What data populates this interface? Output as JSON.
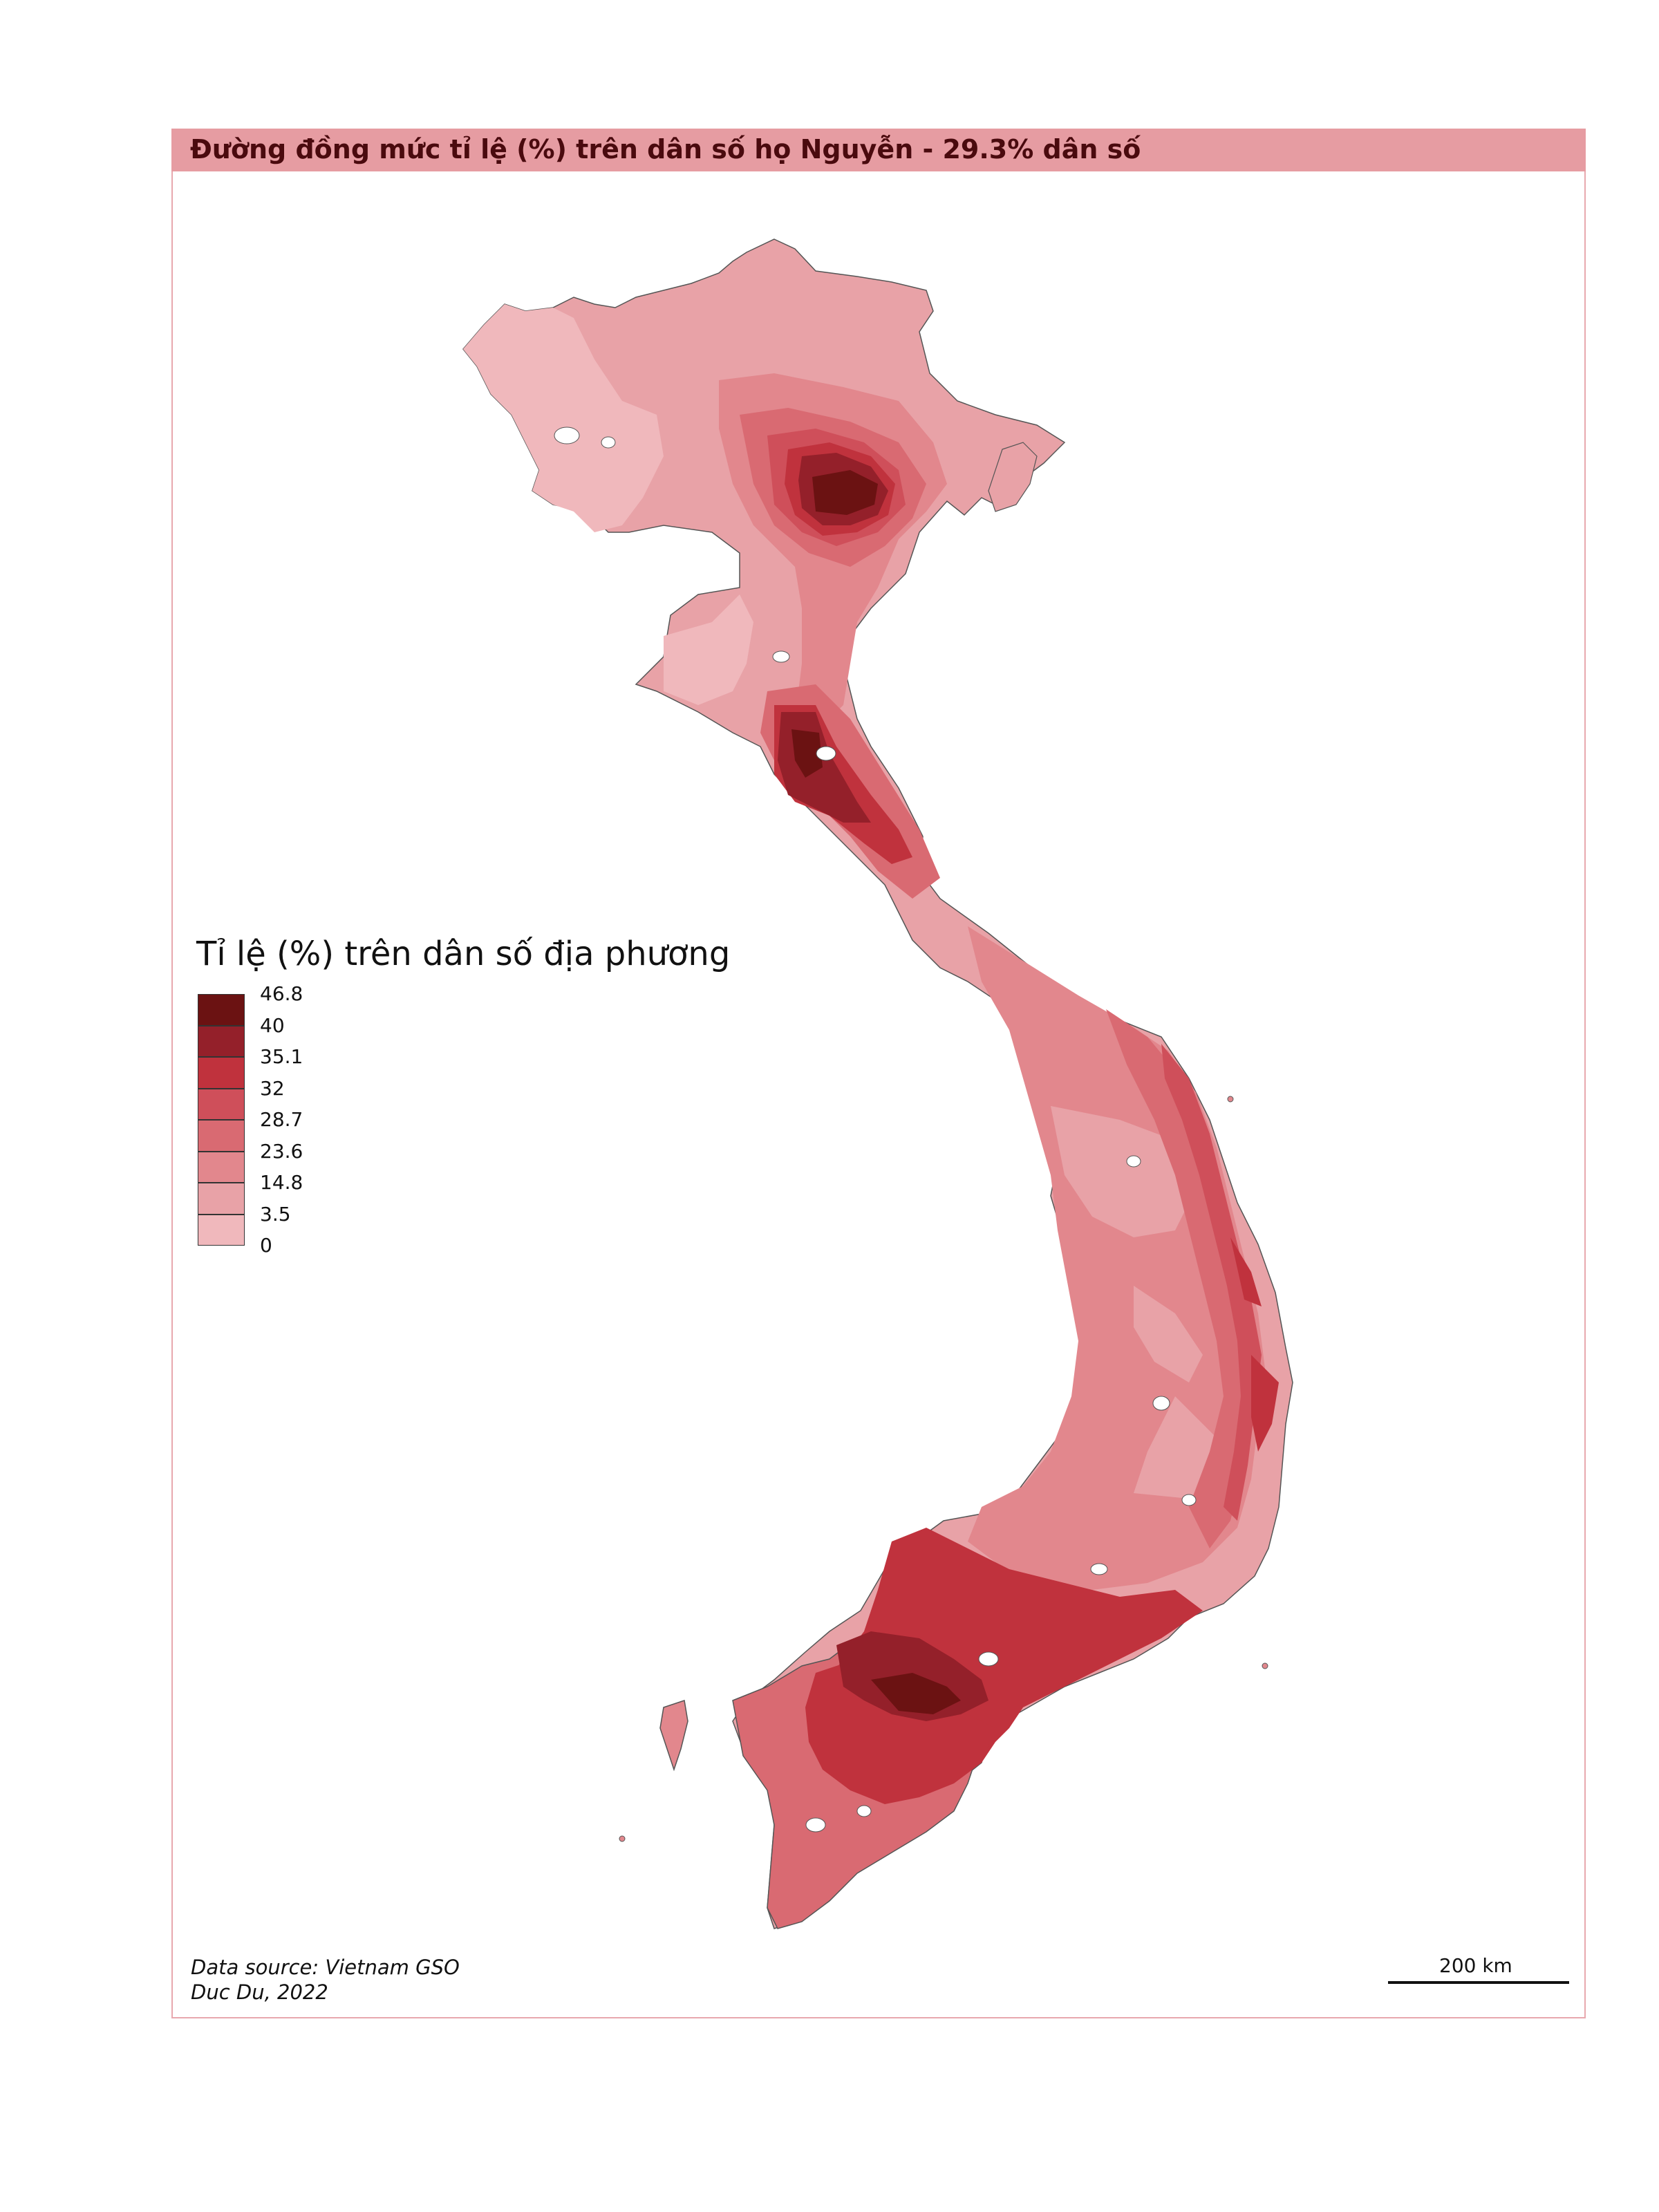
{
  "title": "Đường đồng mức tỉ lệ (%) trên dân số họ Nguyễn - 29.3% dân số",
  "legend": {
    "title": "Tỉ lệ (%) trên dân số địa phương",
    "breaks": [
      "46.8",
      "40",
      "35.1",
      "32",
      "28.7",
      "23.6",
      "14.8",
      "3.5",
      "0"
    ],
    "colors": [
      "#6b1212",
      "#94202a",
      "#c0323d",
      "#cf4f5a",
      "#d96a72",
      "#e2878d",
      "#e8a2a7",
      "#f0b8bc"
    ]
  },
  "source": {
    "line1": "Data source: Vietnam GSO",
    "line2": "Duc Du, 2022"
  },
  "scale": {
    "label": "200 km"
  }
}
